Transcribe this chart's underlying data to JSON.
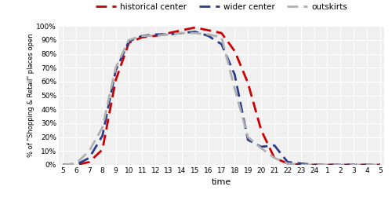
{
  "x_labels": [
    "5",
    "6",
    "7",
    "8",
    "9",
    "10",
    "11",
    "12",
    "13",
    "14",
    "15",
    "16",
    "17",
    "18",
    "19",
    "20",
    "21",
    "22",
    "23",
    "24",
    "1",
    "2",
    "3",
    "4",
    "5"
  ],
  "historical_center": [
    0,
    0,
    2,
    11,
    61,
    88,
    92,
    93,
    95,
    97,
    99,
    97,
    95,
    82,
    59,
    25,
    5,
    1,
    0,
    0,
    0,
    0,
    0,
    0,
    0
  ],
  "wider_center": [
    0,
    0,
    5,
    21,
    68,
    89,
    93,
    94,
    94,
    95,
    96,
    93,
    87,
    65,
    18,
    13,
    14,
    2,
    1,
    0,
    0,
    0,
    0,
    0,
    0
  ],
  "outskirts": [
    0,
    1,
    10,
    27,
    70,
    90,
    93,
    93,
    94,
    95,
    95,
    94,
    92,
    55,
    20,
    12,
    5,
    1,
    0,
    0,
    0,
    0,
    0,
    0,
    0
  ],
  "historical_color": "#cc0000",
  "wider_color": "#2b3c8c",
  "outskirts_color": "#b0b0b0",
  "ylabel": "% of \"Shopping & Retail\" places open",
  "xlabel": "time",
  "ylim": [
    0,
    100
  ],
  "yticks": [
    0,
    10,
    20,
    30,
    40,
    50,
    60,
    70,
    80,
    90,
    100
  ],
  "ytick_labels": [
    "0%",
    "10%",
    "20%",
    "30%",
    "40%",
    "50%",
    "60%",
    "70%",
    "80%",
    "90%",
    "100%"
  ],
  "background_color": "#f0f0f0",
  "grid_color": "#ffffff",
  "legend_labels": [
    "historical center",
    "wider center",
    "outskirts"
  ],
  "figsize": [
    5.0,
    2.56
  ],
  "dpi": 100
}
